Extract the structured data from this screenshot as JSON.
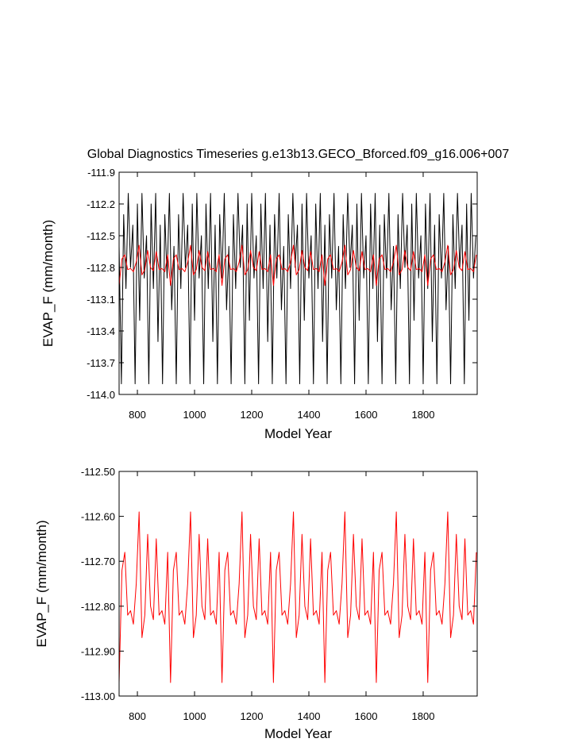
{
  "chart_data": [
    {
      "type": "line",
      "title": "Global Diagnostics Timeseries g.e13b13.GECO_Bforced.f09_g16.006+007",
      "x_label": "Model Year",
      "y_label": "EVAP_F (mm/month)",
      "xlim": [
        736,
        1989
      ],
      "xticks": [
        800,
        1000,
        1200,
        1400,
        1600,
        1800
      ],
      "ylim": [
        -114.0,
        -111.9
      ],
      "yticks": [
        -111.9,
        -112.2,
        -112.5,
        -112.8,
        -113.1,
        -113.4,
        -113.7,
        {
          "value": -114.0,
          "label": "-114.0"
        }
      ],
      "series": [
        {
          "color": "#000000",
          "x": [
            736,
            744,
            752,
            760,
            768,
            776,
            784,
            792,
            800,
            808,
            816,
            824,
            832,
            840,
            848,
            856,
            864,
            872,
            880,
            888,
            896,
            904,
            912,
            920,
            928,
            936,
            944,
            952,
            960,
            968,
            976,
            984,
            992,
            1000,
            1008,
            1016,
            1024,
            1032,
            1040,
            1048,
            1056,
            1064,
            1072,
            1080,
            1088,
            1096,
            1104,
            1112,
            1120,
            1128,
            1136,
            1144,
            1152,
            1160,
            1168,
            1176,
            1184,
            1192,
            1200,
            1208,
            1216,
            1224,
            1232,
            1240,
            1248,
            1256,
            1264,
            1272,
            1280,
            1288,
            1296,
            1304,
            1312,
            1320,
            1328,
            1336,
            1344,
            1352,
            1360,
            1368,
            1376,
            1384,
            1392,
            1400,
            1408,
            1416,
            1424,
            1432,
            1440,
            1448,
            1456,
            1464,
            1472,
            1480,
            1488,
            1496,
            1504,
            1512,
            1520,
            1528,
            1536,
            1544,
            1552,
            1560,
            1568,
            1576,
            1584,
            1592,
            1600,
            1608,
            1616,
            1624,
            1632,
            1640,
            1648,
            1656,
            1664,
            1672,
            1680,
            1688,
            1696,
            1704,
            1712,
            1720,
            1728,
            1736,
            1744,
            1752,
            1760,
            1768,
            1776,
            1784,
            1792,
            1800,
            1808,
            1816,
            1824,
            1832,
            1840,
            1848,
            1856,
            1864,
            1872,
            1880,
            1888,
            1896,
            1904,
            1912,
            1920,
            1928,
            1936,
            1944,
            1952,
            1960,
            1968,
            1976,
            1984
          ],
          "values": [
            -112.6,
            -113.9,
            -112.3,
            -113.0,
            -112.1,
            -112.8,
            -112.4,
            -113.9,
            -112.2,
            -113.3,
            -112.1,
            -112.9,
            -112.5,
            -113.9,
            -112.2,
            -113.0,
            -112.1,
            -113.5,
            -112.4,
            -113.9,
            -112.3,
            -112.9,
            -112.1,
            -113.2,
            -112.6,
            -113.9,
            -112.3,
            -113.0,
            -112.1,
            -112.8,
            -112.4,
            -113.9,
            -112.2,
            -113.3,
            -112.1,
            -112.9,
            -112.5,
            -113.9,
            -112.2,
            -113.0,
            -112.1,
            -113.5,
            -112.4,
            -113.9,
            -112.3,
            -112.9,
            -112.1,
            -113.2,
            -112.6,
            -113.9,
            -112.3,
            -113.0,
            -112.1,
            -112.8,
            -112.4,
            -113.9,
            -112.2,
            -113.3,
            -112.1,
            -112.9,
            -112.5,
            -113.9,
            -112.2,
            -113.0,
            -112.1,
            -113.5,
            -112.4,
            -113.9,
            -112.3,
            -112.9,
            -112.1,
            -113.2,
            -112.6,
            -113.9,
            -112.3,
            -113.0,
            -112.1,
            -112.8,
            -112.4,
            -113.9,
            -112.2,
            -113.3,
            -112.1,
            -112.9,
            -112.5,
            -113.9,
            -112.2,
            -113.0,
            -112.1,
            -113.5,
            -112.4,
            -113.9,
            -112.3,
            -112.9,
            -112.1,
            -113.2,
            -112.6,
            -113.9,
            -112.3,
            -113.0,
            -112.1,
            -112.8,
            -112.4,
            -113.9,
            -112.2,
            -113.3,
            -112.1,
            -112.9,
            -112.5,
            -113.9,
            -112.2,
            -113.0,
            -112.1,
            -113.5,
            -112.4,
            -113.9,
            -112.3,
            -112.9,
            -112.1,
            -113.2,
            -112.6,
            -113.9,
            -112.3,
            -113.0,
            -112.1,
            -112.8,
            -112.4,
            -113.9,
            -112.2,
            -113.3,
            -112.1,
            -112.9,
            -112.5,
            -113.9,
            -112.2,
            -113.0,
            -112.1,
            -113.5,
            -112.4,
            -113.9,
            -112.3,
            -112.9,
            -112.1,
            -113.2,
            -112.6,
            -113.9,
            -112.3,
            -113.0,
            -112.1,
            -112.8,
            -112.4,
            -113.9,
            -112.2,
            -113.3,
            -112.1,
            -112.9,
            -112.5
          ]
        },
        {
          "color": "#ff0000",
          "x": [
            736,
            746,
            756,
            766,
            776,
            786,
            796,
            806,
            816,
            826,
            836,
            846,
            856,
            866,
            876,
            886,
            896,
            906,
            916,
            926,
            936,
            946,
            956,
            966,
            976,
            986,
            996,
            1006,
            1016,
            1026,
            1036,
            1046,
            1056,
            1066,
            1076,
            1086,
            1096,
            1106,
            1116,
            1126,
            1136,
            1146,
            1156,
            1166,
            1176,
            1186,
            1196,
            1206,
            1216,
            1226,
            1236,
            1246,
            1256,
            1266,
            1276,
            1286,
            1296,
            1306,
            1316,
            1326,
            1336,
            1346,
            1356,
            1366,
            1376,
            1386,
            1396,
            1406,
            1416,
            1426,
            1436,
            1446,
            1456,
            1466,
            1476,
            1486,
            1496,
            1506,
            1516,
            1526,
            1536,
            1546,
            1556,
            1566,
            1576,
            1586,
            1596,
            1606,
            1616,
            1626,
            1636,
            1646,
            1656,
            1666,
            1676,
            1686,
            1696,
            1706,
            1716,
            1726,
            1736,
            1746,
            1756,
            1766,
            1776,
            1786,
            1796,
            1806,
            1816,
            1826,
            1836,
            1846,
            1856,
            1866,
            1876,
            1886,
            1896,
            1906,
            1916,
            1926,
            1936,
            1946,
            1956,
            1966,
            1976,
            1986
          ],
          "values": [
            -112.97,
            -112.72,
            -112.68,
            -112.82,
            -112.81,
            -112.84,
            -112.75,
            -112.59,
            -112.87,
            -112.82,
            -112.64,
            -112.8,
            -112.83,
            -112.65,
            -112.82,
            -112.81,
            -112.84,
            -112.68,
            -112.97,
            -112.72,
            -112.68,
            -112.82,
            -112.81,
            -112.84,
            -112.75,
            -112.59,
            -112.87,
            -112.82,
            -112.64,
            -112.8,
            -112.83,
            -112.65,
            -112.82,
            -112.81,
            -112.84,
            -112.68,
            -112.97,
            -112.72,
            -112.68,
            -112.82,
            -112.81,
            -112.84,
            -112.75,
            -112.59,
            -112.87,
            -112.82,
            -112.64,
            -112.8,
            -112.83,
            -112.65,
            -112.82,
            -112.81,
            -112.84,
            -112.68,
            -112.97,
            -112.72,
            -112.68,
            -112.82,
            -112.81,
            -112.84,
            -112.75,
            -112.59,
            -112.87,
            -112.82,
            -112.64,
            -112.8,
            -112.83,
            -112.65,
            -112.82,
            -112.81,
            -112.84,
            -112.68,
            -112.97,
            -112.72,
            -112.68,
            -112.82,
            -112.81,
            -112.84,
            -112.75,
            -112.59,
            -112.87,
            -112.82,
            -112.64,
            -112.8,
            -112.83,
            -112.65,
            -112.82,
            -112.81,
            -112.84,
            -112.68,
            -112.97,
            -112.72,
            -112.68,
            -112.82,
            -112.81,
            -112.84,
            -112.75,
            -112.59,
            -112.87,
            -112.82,
            -112.64,
            -112.8,
            -112.83,
            -112.65,
            -112.82,
            -112.81,
            -112.84,
            -112.68,
            -112.97,
            -112.72,
            -112.68,
            -112.82,
            -112.81,
            -112.84,
            -112.75,
            -112.59,
            -112.87,
            -112.82,
            -112.64,
            -112.8,
            -112.83,
            -112.65,
            -112.82,
            -112.81,
            -112.84,
            -112.68
          ]
        }
      ]
    },
    {
      "type": "line",
      "x_label": "Model Year",
      "y_label": "EVAP_F (mm/month)",
      "xlim": [
        736,
        1989
      ],
      "xticks": [
        800,
        1000,
        1200,
        1400,
        1600,
        1800
      ],
      "ylim": [
        -113.0,
        -112.5
      ],
      "yticks": [
        {
          "value": -112.5,
          "label": "-112.50"
        },
        {
          "value": -112.6,
          "label": "-112.60"
        },
        {
          "value": -112.7,
          "label": "-112.70"
        },
        {
          "value": -112.8,
          "label": "-112.80"
        },
        {
          "value": -112.9,
          "label": "-112.90"
        },
        {
          "value": -113.0,
          "label": "-113.00"
        }
      ],
      "series": [
        {
          "color": "#ff0000",
          "x": [
            736,
            746,
            756,
            766,
            776,
            786,
            796,
            806,
            816,
            826,
            836,
            846,
            856,
            866,
            876,
            886,
            896,
            906,
            916,
            926,
            936,
            946,
            956,
            966,
            976,
            986,
            996,
            1006,
            1016,
            1026,
            1036,
            1046,
            1056,
            1066,
            1076,
            1086,
            1096,
            1106,
            1116,
            1126,
            1136,
            1146,
            1156,
            1166,
            1176,
            1186,
            1196,
            1206,
            1216,
            1226,
            1236,
            1246,
            1256,
            1266,
            1276,
            1286,
            1296,
            1306,
            1316,
            1326,
            1336,
            1346,
            1356,
            1366,
            1376,
            1386,
            1396,
            1406,
            1416,
            1426,
            1436,
            1446,
            1456,
            1466,
            1476,
            1486,
            1496,
            1506,
            1516,
            1526,
            1536,
            1546,
            1556,
            1566,
            1576,
            1586,
            1596,
            1606,
            1616,
            1626,
            1636,
            1646,
            1656,
            1666,
            1676,
            1686,
            1696,
            1706,
            1716,
            1726,
            1736,
            1746,
            1756,
            1766,
            1776,
            1786,
            1796,
            1806,
            1816,
            1826,
            1836,
            1846,
            1856,
            1866,
            1876,
            1886,
            1896,
            1906,
            1916,
            1926,
            1936,
            1946,
            1956,
            1966,
            1976,
            1986
          ],
          "values": [
            -112.97,
            -112.72,
            -112.68,
            -112.82,
            -112.81,
            -112.84,
            -112.75,
            -112.59,
            -112.87,
            -112.82,
            -112.64,
            -112.8,
            -112.83,
            -112.65,
            -112.82,
            -112.81,
            -112.84,
            -112.68,
            -112.97,
            -112.72,
            -112.68,
            -112.82,
            -112.81,
            -112.84,
            -112.75,
            -112.59,
            -112.87,
            -112.82,
            -112.64,
            -112.8,
            -112.83,
            -112.65,
            -112.82,
            -112.81,
            -112.84,
            -112.68,
            -112.97,
            -112.72,
            -112.68,
            -112.82,
            -112.81,
            -112.84,
            -112.75,
            -112.59,
            -112.87,
            -112.82,
            -112.64,
            -112.8,
            -112.83,
            -112.65,
            -112.82,
            -112.81,
            -112.84,
            -112.68,
            -112.97,
            -112.72,
            -112.68,
            -112.82,
            -112.81,
            -112.84,
            -112.75,
            -112.59,
            -112.87,
            -112.82,
            -112.64,
            -112.8,
            -112.83,
            -112.65,
            -112.82,
            -112.81,
            -112.84,
            -112.68,
            -112.97,
            -112.72,
            -112.68,
            -112.82,
            -112.81,
            -112.84,
            -112.75,
            -112.59,
            -112.87,
            -112.82,
            -112.64,
            -112.8,
            -112.83,
            -112.65,
            -112.82,
            -112.81,
            -112.84,
            -112.68,
            -112.97,
            -112.72,
            -112.68,
            -112.82,
            -112.81,
            -112.84,
            -112.75,
            -112.59,
            -112.87,
            -112.82,
            -112.64,
            -112.8,
            -112.83,
            -112.65,
            -112.82,
            -112.81,
            -112.84,
            -112.68,
            -112.97,
            -112.72,
            -112.68,
            -112.82,
            -112.81,
            -112.84,
            -112.75,
            -112.59,
            -112.87,
            -112.82,
            -112.64,
            -112.8,
            -112.83,
            -112.65,
            -112.82,
            -112.81,
            -112.84,
            -112.68
          ]
        }
      ]
    }
  ]
}
